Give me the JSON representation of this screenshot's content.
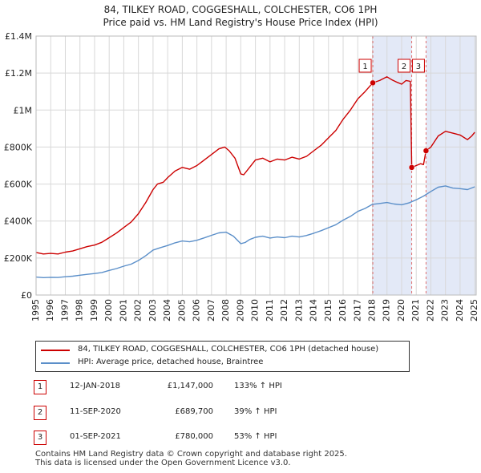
{
  "title": {
    "line1": "84, TILKEY ROAD, COGGESHALL, COLCHESTER, CO6 1PH",
    "line2": "Price paid vs. HM Land Registry's House Price Index (HPI)"
  },
  "colors": {
    "property": "#cc0000",
    "hpi": "#5b8fc9",
    "shade": "#e3e9f7",
    "grid": "#d8d8d8",
    "vline": "#e07070"
  },
  "chart_data": {
    "type": "line",
    "title": "84, TILKEY ROAD, COGGESHALL, COLCHESTER, CO6 1PH — Price paid vs. HM Land Registry's House Price Index (HPI)",
    "xlabel": "",
    "ylabel": "",
    "xlim": [
      1995.0,
      2025.1
    ],
    "ylim": [
      0,
      1400000
    ],
    "x_ticks": [
      1995,
      1996,
      1997,
      1998,
      1999,
      2000,
      2001,
      2002,
      2003,
      2004,
      2005,
      2006,
      2007,
      2008,
      2009,
      2010,
      2011,
      2012,
      2013,
      2014,
      2015,
      2016,
      2017,
      2018,
      2019,
      2020,
      2021,
      2022,
      2023,
      2024,
      2025
    ],
    "y_ticks": [
      0,
      200000,
      400000,
      600000,
      800000,
      1000000,
      1200000,
      1400000
    ],
    "y_tick_labels": [
      "£0",
      "£200K",
      "£400K",
      "£600K",
      "£800K",
      "£1M",
      "£1.2M",
      "£1.4M"
    ],
    "grid": true,
    "shaded_periods": [
      [
        2018.03,
        2020.69
      ],
      [
        2021.67,
        2025.1
      ]
    ],
    "series": [
      {
        "name": "84, TILKEY ROAD, COGGESHALL, COLCHESTER, CO6 1PH (detached house)",
        "color": "#cc0000",
        "points": [
          [
            1995.0,
            230000
          ],
          [
            1995.5,
            222000
          ],
          [
            1996.0,
            225000
          ],
          [
            1996.5,
            222000
          ],
          [
            1997.0,
            232000
          ],
          [
            1997.5,
            238000
          ],
          [
            1998.0,
            250000
          ],
          [
            1998.5,
            262000
          ],
          [
            1999.0,
            270000
          ],
          [
            1999.5,
            285000
          ],
          [
            2000.0,
            310000
          ],
          [
            2000.5,
            335000
          ],
          [
            2001.0,
            365000
          ],
          [
            2001.5,
            395000
          ],
          [
            2002.0,
            440000
          ],
          [
            2002.5,
            500000
          ],
          [
            2003.0,
            570000
          ],
          [
            2003.3,
            600000
          ],
          [
            2003.7,
            610000
          ],
          [
            2004.0,
            635000
          ],
          [
            2004.5,
            670000
          ],
          [
            2005.0,
            690000
          ],
          [
            2005.5,
            680000
          ],
          [
            2006.0,
            700000
          ],
          [
            2006.5,
            730000
          ],
          [
            2007.0,
            760000
          ],
          [
            2007.5,
            790000
          ],
          [
            2007.9,
            800000
          ],
          [
            2008.2,
            780000
          ],
          [
            2008.6,
            740000
          ],
          [
            2009.0,
            655000
          ],
          [
            2009.2,
            650000
          ],
          [
            2009.6,
            690000
          ],
          [
            2010.0,
            730000
          ],
          [
            2010.5,
            740000
          ],
          [
            2011.0,
            720000
          ],
          [
            2011.5,
            735000
          ],
          [
            2012.0,
            730000
          ],
          [
            2012.5,
            745000
          ],
          [
            2013.0,
            735000
          ],
          [
            2013.5,
            750000
          ],
          [
            2014.0,
            780000
          ],
          [
            2014.5,
            810000
          ],
          [
            2015.0,
            850000
          ],
          [
            2015.5,
            890000
          ],
          [
            2016.0,
            950000
          ],
          [
            2016.5,
            1000000
          ],
          [
            2017.0,
            1060000
          ],
          [
            2017.5,
            1100000
          ],
          [
            2018.03,
            1147000
          ],
          [
            2018.5,
            1160000
          ],
          [
            2019.0,
            1180000
          ],
          [
            2019.3,
            1165000
          ],
          [
            2019.7,
            1150000
          ],
          [
            2020.0,
            1140000
          ],
          [
            2020.3,
            1160000
          ],
          [
            2020.6,
            1155000
          ],
          [
            2020.69,
            689700
          ],
          [
            2021.0,
            700000
          ],
          [
            2021.3,
            710000
          ],
          [
            2021.5,
            705000
          ],
          [
            2021.67,
            780000
          ],
          [
            2022.0,
            800000
          ],
          [
            2022.5,
            860000
          ],
          [
            2023.0,
            885000
          ],
          [
            2023.5,
            875000
          ],
          [
            2024.0,
            865000
          ],
          [
            2024.5,
            840000
          ],
          [
            2024.8,
            860000
          ],
          [
            2025.0,
            880000
          ]
        ]
      },
      {
        "name": "HPI: Average price, detached house, Braintree",
        "color": "#5b8fc9",
        "points": [
          [
            1995.0,
            97000
          ],
          [
            1995.5,
            94000
          ],
          [
            1996.0,
            96000
          ],
          [
            1996.5,
            95000
          ],
          [
            1997.0,
            99000
          ],
          [
            1997.5,
            102000
          ],
          [
            1998.0,
            107000
          ],
          [
            1998.5,
            112000
          ],
          [
            1999.0,
            116000
          ],
          [
            1999.5,
            122000
          ],
          [
            2000.0,
            133000
          ],
          [
            2000.5,
            143000
          ],
          [
            2001.0,
            156000
          ],
          [
            2001.5,
            167000
          ],
          [
            2002.0,
            187000
          ],
          [
            2002.5,
            213000
          ],
          [
            2003.0,
            243000
          ],
          [
            2003.5,
            256000
          ],
          [
            2004.0,
            268000
          ],
          [
            2004.5,
            282000
          ],
          [
            2005.0,
            292000
          ],
          [
            2005.5,
            288000
          ],
          [
            2006.0,
            296000
          ],
          [
            2006.5,
            309000
          ],
          [
            2007.0,
            323000
          ],
          [
            2007.5,
            336000
          ],
          [
            2008.0,
            340000
          ],
          [
            2008.5,
            318000
          ],
          [
            2009.0,
            278000
          ],
          [
            2009.3,
            284000
          ],
          [
            2009.6,
            300000
          ],
          [
            2010.0,
            312000
          ],
          [
            2010.5,
            318000
          ],
          [
            2011.0,
            308000
          ],
          [
            2011.5,
            314000
          ],
          [
            2012.0,
            310000
          ],
          [
            2012.5,
            318000
          ],
          [
            2013.0,
            314000
          ],
          [
            2013.5,
            322000
          ],
          [
            2014.0,
            334000
          ],
          [
            2014.5,
            348000
          ],
          [
            2015.0,
            364000
          ],
          [
            2015.5,
            380000
          ],
          [
            2016.0,
            405000
          ],
          [
            2016.5,
            425000
          ],
          [
            2017.0,
            452000
          ],
          [
            2017.5,
            468000
          ],
          [
            2018.0,
            490000
          ],
          [
            2018.5,
            495000
          ],
          [
            2019.0,
            500000
          ],
          [
            2019.5,
            492000
          ],
          [
            2020.0,
            488000
          ],
          [
            2020.5,
            498000
          ],
          [
            2021.0,
            515000
          ],
          [
            2021.5,
            535000
          ],
          [
            2022.0,
            560000
          ],
          [
            2022.5,
            583000
          ],
          [
            2023.0,
            590000
          ],
          [
            2023.5,
            578000
          ],
          [
            2024.0,
            575000
          ],
          [
            2024.5,
            570000
          ],
          [
            2025.0,
            585000
          ]
        ]
      }
    ],
    "sales": [
      {
        "label": "1",
        "x": 2018.03,
        "price": 1147000
      },
      {
        "label": "2",
        "x": 2020.69,
        "price": 689700
      },
      {
        "label": "3",
        "x": 2021.67,
        "price": 780000
      }
    ]
  },
  "legend": {
    "property_label": "84, TILKEY ROAD, COGGESHALL, COLCHESTER, CO6 1PH (detached house)",
    "hpi_label": "HPI: Average price, detached house, Braintree"
  },
  "transactions": [
    {
      "num": "1",
      "date": "12-JAN-2018",
      "price": "£1,147,000",
      "hpi": "133% ↑ HPI"
    },
    {
      "num": "2",
      "date": "11-SEP-2020",
      "price": "£689,700",
      "hpi": "39% ↑ HPI"
    },
    {
      "num": "3",
      "date": "01-SEP-2021",
      "price": "£780,000",
      "hpi": "53% ↑ HPI"
    }
  ],
  "footer": {
    "line1": "Contains HM Land Registry data © Crown copyright and database right 2025.",
    "line2": "This data is licensed under the Open Government Licence v3.0."
  }
}
